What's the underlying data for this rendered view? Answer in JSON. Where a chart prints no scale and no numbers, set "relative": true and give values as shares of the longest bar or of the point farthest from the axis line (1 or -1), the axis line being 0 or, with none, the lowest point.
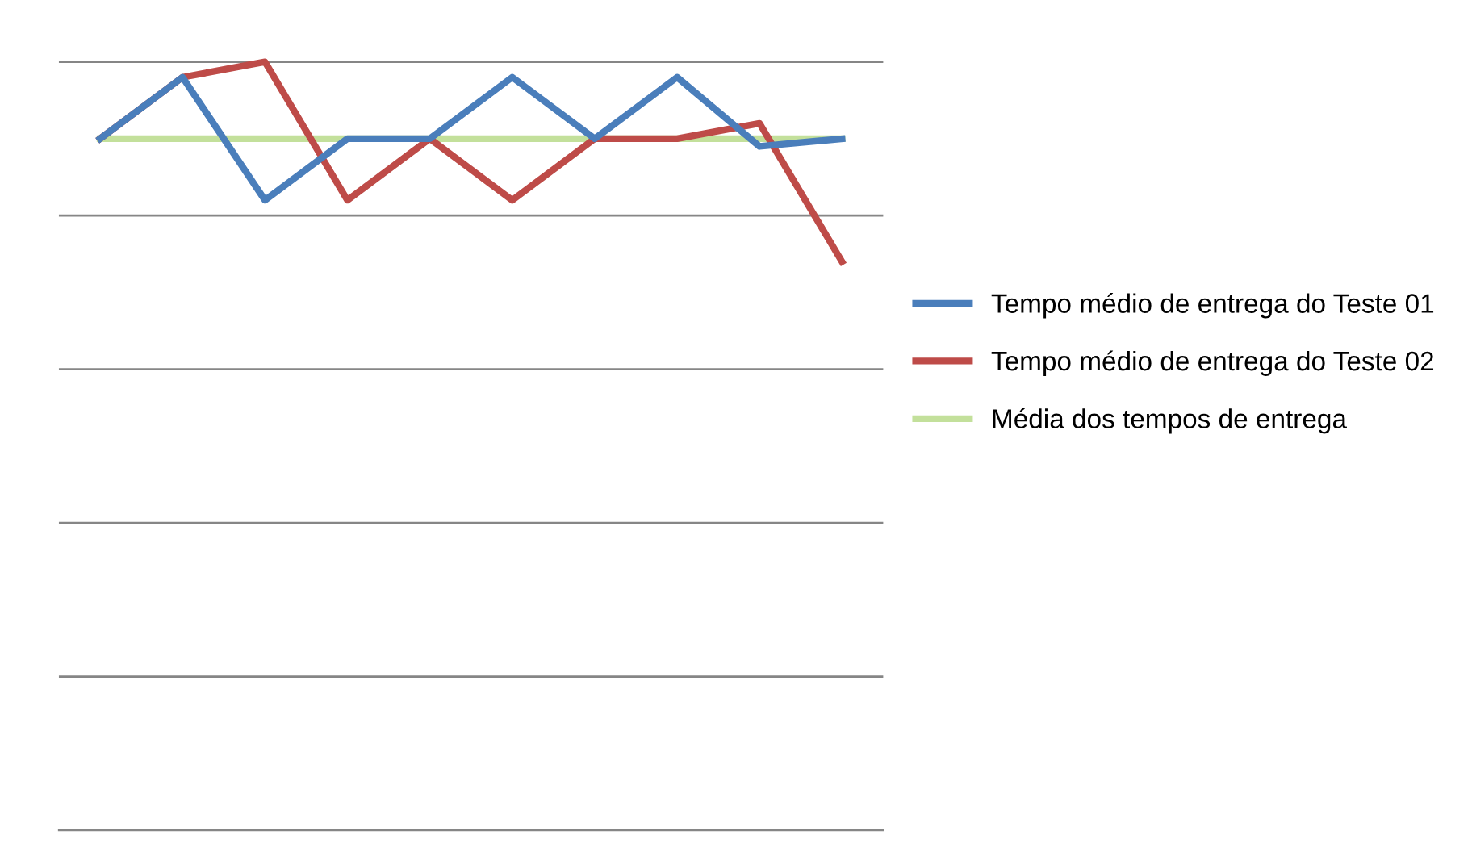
{
  "chart_data": {
    "type": "line",
    "relative": true,
    "categories": [
      null,
      null,
      null,
      null,
      null,
      null,
      null,
      null,
      null,
      null
    ],
    "series": [
      {
        "name": "Tempo médio de entrega do Teste 01",
        "color": "#4a7ebb",
        "values": [
          0.9,
          0.98,
          0.82,
          0.9,
          0.9,
          0.98,
          0.9,
          0.98,
          0.89,
          0.9
        ]
      },
      {
        "name": "Tempo médio de entrega do Teste 02",
        "color": "#be4b48",
        "values": [
          0.9,
          0.98,
          1.0,
          0.82,
          0.9,
          0.82,
          0.9,
          0.9,
          0.92,
          0.74
        ]
      },
      {
        "name": "Média dos tempos de entrega",
        "color": "#c3e09b",
        "values": [
          0.9,
          0.9,
          0.9,
          0.9,
          0.9,
          0.9,
          0.9,
          0.9,
          0.9,
          0.9
        ]
      }
    ],
    "grid": "y",
    "legend": "right",
    "marker": "none",
    "line_style": "solid"
  }
}
